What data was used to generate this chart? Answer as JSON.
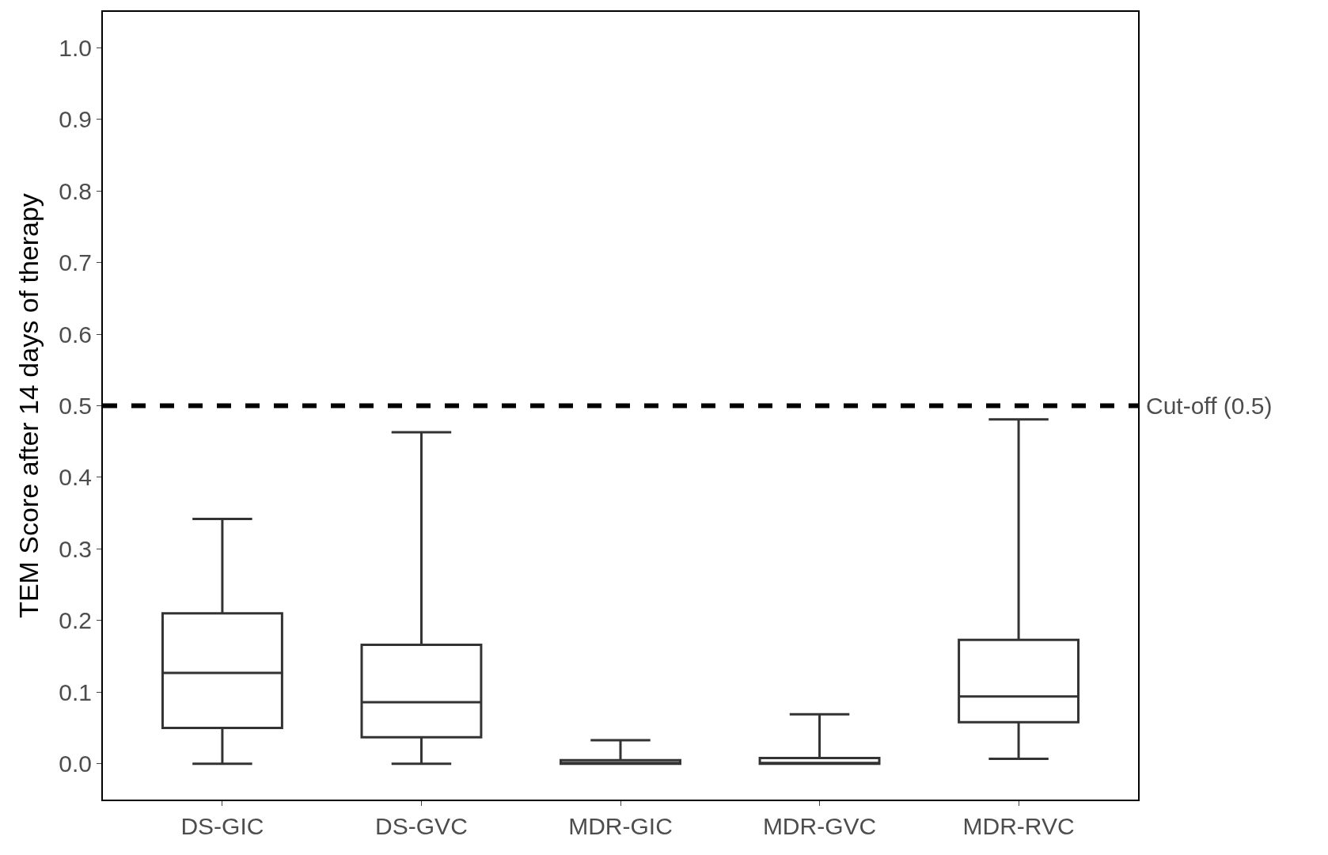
{
  "chart_data": {
    "type": "box",
    "ylabel": "TEM Score after 14 days of therapy",
    "categories": [
      "DS-GIC",
      "DS-GVC",
      "MDR-GIC",
      "MDR-GVC",
      "MDR-RVC"
    ],
    "boxes": [
      {
        "low": 0,
        "q1": 0.05,
        "median": 0.127,
        "q3": 0.21,
        "high": 0.342
      },
      {
        "low": 0,
        "q1": 0.037,
        "median": 0.086,
        "q3": 0.166,
        "high": 0.463
      },
      {
        "low": 0,
        "q1": 0,
        "median": 0,
        "q3": 0.005,
        "high": 0.033
      },
      {
        "low": 0,
        "q1": 0,
        "median": 0,
        "q3": 0.008,
        "high": 0.069
      },
      {
        "low": 0.007,
        "q1": 0.058,
        "median": 0.094,
        "q3": 0.173,
        "high": 0.481
      }
    ],
    "color": "#333333",
    "ylim": [
      -0.05,
      1.05
    ],
    "yticks": [
      {
        "value": 0,
        "label": "0.0"
      },
      {
        "value": 0.1,
        "label": "0.1"
      },
      {
        "value": 0.2,
        "label": "0.2"
      },
      {
        "value": 0.3,
        "label": "0.3"
      },
      {
        "value": 0.4,
        "label": "0.4"
      },
      {
        "value": 0.5,
        "label": "0.5"
      },
      {
        "value": 0.6,
        "label": "0.6"
      },
      {
        "value": 0.7,
        "label": "0.7"
      },
      {
        "value": 0.8,
        "label": "0.8"
      },
      {
        "value": 0.9,
        "label": "0.9"
      },
      {
        "value": 1,
        "label": "1.0"
      }
    ],
    "ref_lines": [
      {
        "axis": "y",
        "value": 0.5,
        "label": "Cut-off (0.5)",
        "color": "#000000",
        "line_style": "dashed"
      }
    ]
  }
}
